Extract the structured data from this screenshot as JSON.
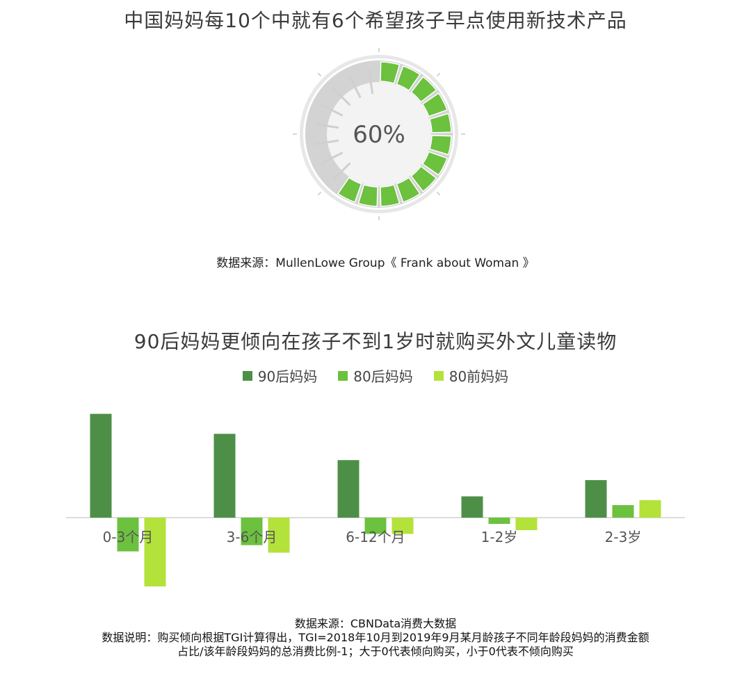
{
  "gauge": {
    "title": "中国妈妈每10个中就有6个希望孩子早点使用新技术产品",
    "value_label": "60%",
    "fraction": 0.6,
    "source": "数据来源：MullenLowe Group《 Frank about Woman 》",
    "colors": {
      "fill": "#6cc13f",
      "track": "#f3f3f3",
      "rim": "#d3d3d3",
      "tick": "#cfcfcf"
    }
  },
  "chart_data": {
    "type": "bar",
    "title": "90后妈妈更倾向在孩子不到1岁时就购买外文儿童读物",
    "categories": [
      "0-3个月",
      "3-6个月",
      "6-12个月",
      "1-2岁",
      "2-3岁"
    ],
    "series": [
      {
        "name": "90后妈妈",
        "color": "#4e8f47",
        "values": [
          0.83,
          0.67,
          0.46,
          0.17,
          0.3
        ]
      },
      {
        "name": "80后妈妈",
        "color": "#6cc13f",
        "values": [
          -0.27,
          -0.22,
          -0.13,
          -0.05,
          0.1
        ]
      },
      {
        "name": "80前妈妈",
        "color": "#b3e23a",
        "values": [
          -0.55,
          -0.28,
          -0.13,
          -0.1,
          0.14
        ]
      }
    ],
    "ylim": [
      -0.6,
      0.9
    ],
    "grid": false,
    "legend": "top-center"
  },
  "notes": {
    "source": "数据来源：CBNData消费大数据",
    "line1": "数据说明：购买倾向根据TGI计算得出，TGI=2018年10月到2019年9月某月龄孩子不同年龄段妈妈的消费金额",
    "line2": "占比/该年龄段妈妈的总消费比例-1；大于0代表倾向购买，小于0代表不倾向购买"
  }
}
